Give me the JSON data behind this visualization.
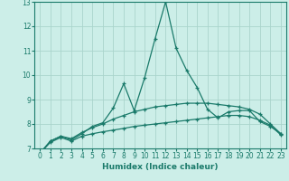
{
  "title": "",
  "xlabel": "Humidex (Indice chaleur)",
  "background_color": "#cceee8",
  "grid_color": "#aad4cc",
  "line_color": "#1a7a6a",
  "x": [
    0,
    1,
    2,
    3,
    4,
    5,
    6,
    7,
    8,
    9,
    10,
    11,
    12,
    13,
    14,
    15,
    16,
    17,
    18,
    19,
    20,
    21,
    22,
    23
  ],
  "line_spiky": [
    6.8,
    7.3,
    7.5,
    7.35,
    7.6,
    7.9,
    8.05,
    8.65,
    9.65,
    8.55,
    9.9,
    11.5,
    13.0,
    11.1,
    10.2,
    9.5,
    8.6,
    8.25,
    8.5,
    8.55,
    8.55,
    8.1,
    7.9,
    7.6
  ],
  "line_smooth": [
    6.8,
    7.3,
    7.5,
    7.4,
    7.65,
    7.85,
    8.0,
    8.2,
    8.35,
    8.5,
    8.6,
    8.7,
    8.75,
    8.8,
    8.85,
    8.85,
    8.85,
    8.8,
    8.75,
    8.7,
    8.6,
    8.4,
    8.0,
    7.6
  ],
  "line_bottom": [
    6.8,
    7.25,
    7.45,
    7.3,
    7.5,
    7.6,
    7.68,
    7.75,
    7.82,
    7.9,
    7.95,
    8.0,
    8.05,
    8.1,
    8.15,
    8.2,
    8.25,
    8.3,
    8.35,
    8.35,
    8.3,
    8.15,
    7.95,
    7.55
  ],
  "ylim": [
    7,
    13
  ],
  "xlim": [
    -0.5,
    23.5
  ],
  "yticks": [
    7,
    8,
    9,
    10,
    11,
    12,
    13
  ],
  "xticks": [
    0,
    1,
    2,
    3,
    4,
    5,
    6,
    7,
    8,
    9,
    10,
    11,
    12,
    13,
    14,
    15,
    16,
    17,
    18,
    19,
    20,
    21,
    22,
    23
  ],
  "tick_fontsize": 5.5,
  "label_fontsize": 6.5
}
